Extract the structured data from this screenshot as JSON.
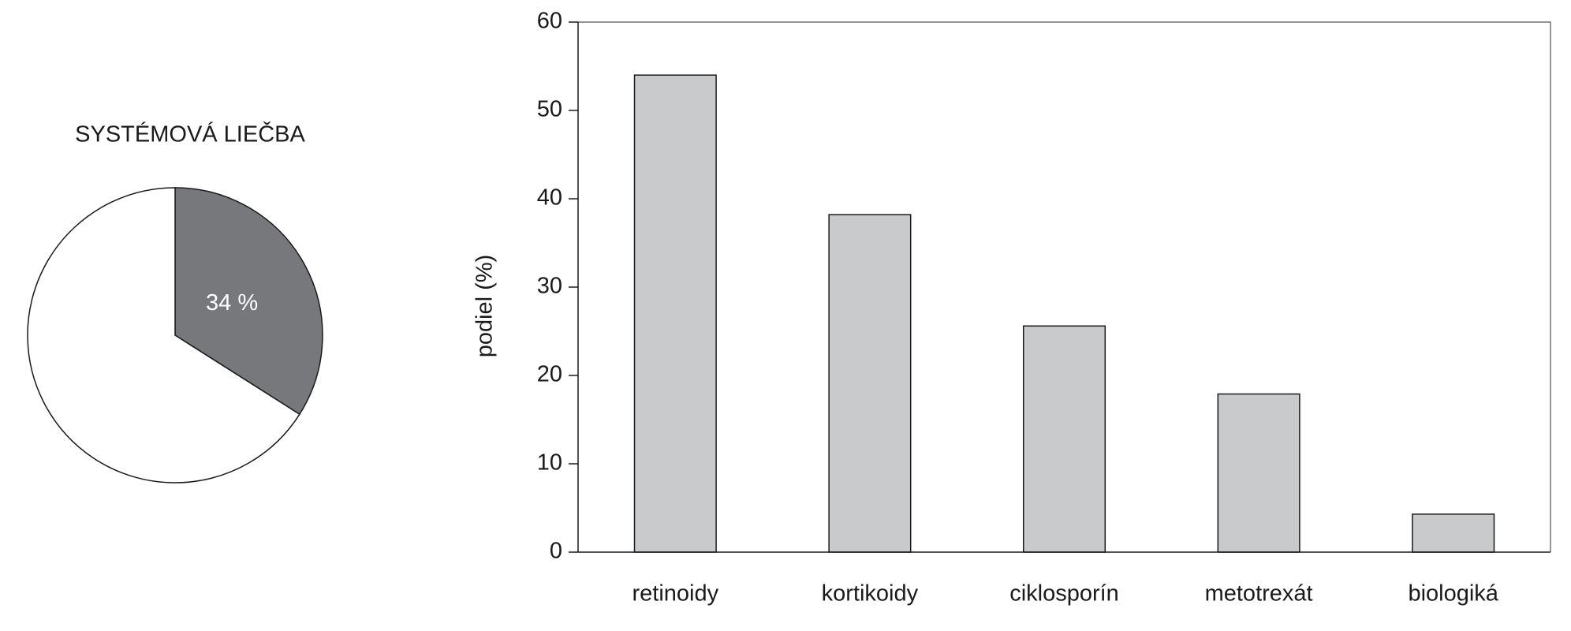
{
  "chart_data": [
    {
      "type": "pie",
      "title": "SYSTÉMOVÁ LIEČBA",
      "values": [
        34,
        66
      ],
      "value_labels": [
        "34 %",
        null
      ],
      "colors": [
        "#77787b",
        "#ffffff"
      ]
    },
    {
      "type": "bar",
      "categories": [
        "retinoidy",
        "kortikoidy",
        "ciklosporín",
        "metotrexát",
        "biologiká"
      ],
      "values": [
        54,
        38.2,
        25.6,
        17.9,
        4.3
      ],
      "color": "#c8cacc",
      "ylabel": "podiel (%)",
      "ylim": [
        0,
        60
      ],
      "yticks": [
        0,
        10,
        20,
        30,
        40,
        50,
        60
      ],
      "grid": false
    }
  ]
}
